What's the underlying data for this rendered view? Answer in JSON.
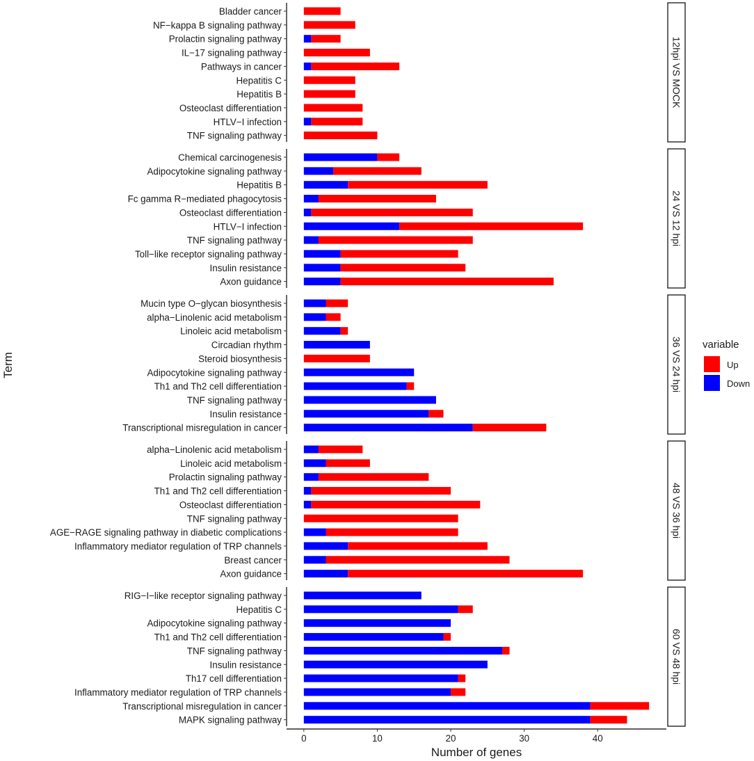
{
  "chart_data": {
    "type": "bar",
    "stacked": true,
    "orientation": "horizontal",
    "xlabel": "Number of genes",
    "ylabel": "Term",
    "xlim": [
      -2.35,
      49.35
    ],
    "xticks": [
      0,
      10,
      20,
      30,
      40
    ],
    "legend": {
      "title": "variable",
      "position": "right",
      "entries": [
        {
          "name": "Up",
          "color": "#ff0000"
        },
        {
          "name": "Down",
          "color": "#0000ff"
        }
      ]
    },
    "panels": [
      {
        "label": "12hpi VS MOCK",
        "rows": [
          {
            "term": "Bladder cancer",
            "down": 0,
            "up": 5
          },
          {
            "term": "NF−kappa B signaling pathway",
            "down": 0,
            "up": 7
          },
          {
            "term": "Prolactin signaling pathway",
            "down": 1,
            "up": 4
          },
          {
            "term": "IL−17 signaling pathway",
            "down": 0,
            "up": 9
          },
          {
            "term": "Pathways in cancer",
            "down": 1,
            "up": 12
          },
          {
            "term": "Hepatitis C",
            "down": 0,
            "up": 7
          },
          {
            "term": "Hepatitis B",
            "down": 0,
            "up": 7
          },
          {
            "term": "Osteoclast differentiation",
            "down": 0,
            "up": 8
          },
          {
            "term": "HTLV−I infection",
            "down": 1,
            "up": 7
          },
          {
            "term": "TNF signaling pathway",
            "down": 0,
            "up": 10
          }
        ]
      },
      {
        "label": "24 VS 12 hpi",
        "rows": [
          {
            "term": "Chemical carcinogenesis",
            "down": 10,
            "up": 3
          },
          {
            "term": "Adipocytokine signaling pathway",
            "down": 4,
            "up": 12
          },
          {
            "term": "Hepatitis B",
            "down": 6,
            "up": 19
          },
          {
            "term": "Fc gamma R−mediated phagocytosis",
            "down": 2,
            "up": 16
          },
          {
            "term": "Osteoclast differentiation",
            "down": 1,
            "up": 22
          },
          {
            "term": "HTLV−I infection",
            "down": 13,
            "up": 25
          },
          {
            "term": "TNF signaling pathway",
            "down": 2,
            "up": 21
          },
          {
            "term": "Toll−like receptor signaling pathway",
            "down": 5,
            "up": 16
          },
          {
            "term": "Insulin resistance",
            "down": 5,
            "up": 17
          },
          {
            "term": "Axon guidance",
            "down": 5,
            "up": 29
          }
        ]
      },
      {
        "label": "36 VS 24 hpi",
        "rows": [
          {
            "term": "Mucin type O−glycan biosynthesis",
            "down": 3,
            "up": 3
          },
          {
            "term": "alpha−Linolenic acid metabolism",
            "down": 3,
            "up": 2
          },
          {
            "term": "Linoleic acid metabolism",
            "down": 5,
            "up": 1
          },
          {
            "term": "Circadian rhythm",
            "down": 9,
            "up": 0
          },
          {
            "term": "Steroid biosynthesis",
            "down": 0,
            "up": 9
          },
          {
            "term": "Adipocytokine signaling pathway",
            "down": 15,
            "up": 0
          },
          {
            "term": "Th1 and Th2 cell differentiation",
            "down": 14,
            "up": 1
          },
          {
            "term": "TNF signaling pathway",
            "down": 18,
            "up": 0
          },
          {
            "term": "Insulin resistance",
            "down": 17,
            "up": 2
          },
          {
            "term": "Transcriptional misregulation in cancer",
            "down": 23,
            "up": 10
          }
        ]
      },
      {
        "label": "48 VS 36 hpi",
        "rows": [
          {
            "term": "alpha−Linolenic acid metabolism",
            "down": 2,
            "up": 6
          },
          {
            "term": "Linoleic acid metabolism",
            "down": 3,
            "up": 6
          },
          {
            "term": "Prolactin signaling pathway",
            "down": 2,
            "up": 15
          },
          {
            "term": "Th1 and Th2 cell differentiation",
            "down": 1,
            "up": 19
          },
          {
            "term": "Osteoclast differentiation",
            "down": 1,
            "up": 23
          },
          {
            "term": "TNF signaling pathway",
            "down": 0,
            "up": 21
          },
          {
            "term": "AGE−RAGE signaling pathway in diabetic complications",
            "down": 3,
            "up": 18
          },
          {
            "term": "Inflammatory mediator regulation of TRP channels",
            "down": 6,
            "up": 19
          },
          {
            "term": "Breast cancer",
            "down": 3,
            "up": 25
          },
          {
            "term": "Axon guidance",
            "down": 6,
            "up": 32
          }
        ]
      },
      {
        "label": "60 VS 48 hpi",
        "rows": [
          {
            "term": "RIG−I−like receptor signaling pathway",
            "down": 16,
            "up": 0
          },
          {
            "term": "Hepatitis C",
            "down": 21,
            "up": 2
          },
          {
            "term": "Adipocytokine signaling pathway",
            "down": 20,
            "up": 0
          },
          {
            "term": "Th1 and Th2 cell differentiation",
            "down": 19,
            "up": 1
          },
          {
            "term": "TNF signaling pathway",
            "down": 27,
            "up": 1
          },
          {
            "term": "Insulin resistance",
            "down": 25,
            "up": 0
          },
          {
            "term": "Th17 cell differentiation",
            "down": 21,
            "up": 1
          },
          {
            "term": "Inflammatory mediator regulation of TRP channels",
            "down": 20,
            "up": 2
          },
          {
            "term": "Transcriptional misregulation in cancer",
            "down": 39,
            "up": 8
          },
          {
            "term": "MAPK signaling pathway",
            "down": 39,
            "up": 5
          }
        ]
      }
    ]
  }
}
